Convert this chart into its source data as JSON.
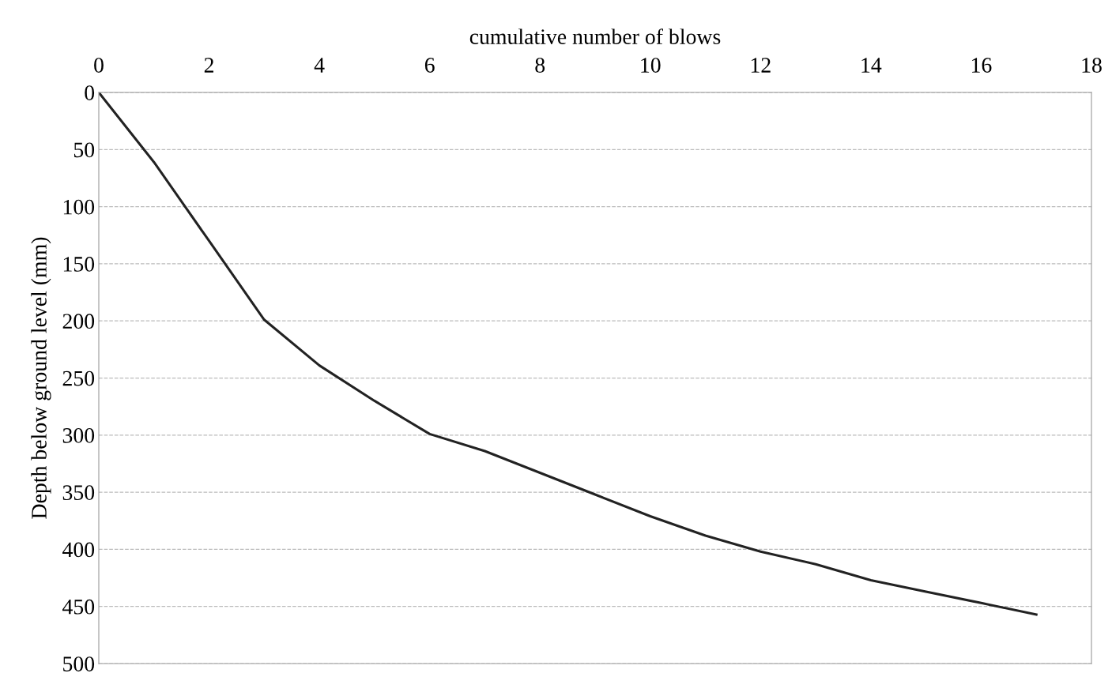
{
  "chart_data": {
    "type": "line",
    "xlabel": "cumulative number of blows",
    "ylabel": "Depth below ground level (mm)",
    "x": [
      0,
      1,
      2,
      3,
      4,
      5,
      6,
      7,
      8,
      9,
      10,
      11,
      12,
      13,
      14,
      15,
      16,
      17
    ],
    "series": [
      {
        "color": "#222222",
        "values": [
          0,
          61,
          130,
          199,
          239,
          270,
          299,
          314,
          333,
          352,
          371,
          388,
          402,
          413,
          427,
          437,
          447,
          457
        ]
      }
    ],
    "xlim": [
      0,
      18
    ],
    "xticks": [
      0,
      2,
      4,
      6,
      8,
      10,
      12,
      14,
      16,
      18
    ],
    "ylim": [
      500,
      0
    ],
    "yticks": [
      0,
      50,
      100,
      150,
      200,
      250,
      300,
      350,
      400,
      450,
      500
    ],
    "grid": "y",
    "marker": "none",
    "line_style": "solid"
  }
}
